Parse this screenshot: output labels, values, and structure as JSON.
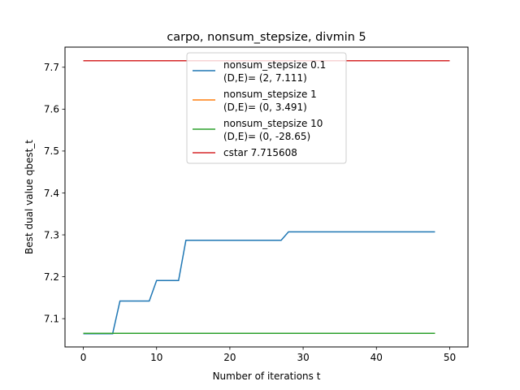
{
  "chart_data": {
    "type": "line",
    "title": "carpo, nonsum_stepsize, divmin 5",
    "xlabel": "Number of iterations t",
    "ylabel": "Best dual value qbest_t",
    "xlim": [
      -2.5,
      52.5
    ],
    "ylim": [
      7.0325,
      7.748
    ],
    "xticks": [
      0,
      10,
      20,
      30,
      40,
      50
    ],
    "yticks": [
      7.1,
      7.2,
      7.3,
      7.4,
      7.5,
      7.6,
      7.7
    ],
    "grid": false,
    "legend_position": "top-center",
    "series": [
      {
        "name": "nonsum_stepsize 0.1",
        "name_line2": "(D,E)= (2, 7.111)",
        "color": "#1f77b4",
        "x": [
          0,
          4,
          5,
          9,
          10,
          13,
          14,
          27,
          28,
          48
        ],
        "y": [
          7.064,
          7.064,
          7.142,
          7.142,
          7.191,
          7.191,
          7.287,
          7.287,
          7.307,
          7.307
        ]
      },
      {
        "name": "nonsum_stepsize 1",
        "name_line2": "(D,E)= (0, 3.491)",
        "color": "#ff7f0e",
        "x": [
          0,
          48
        ],
        "y": [
          7.065,
          7.065
        ]
      },
      {
        "name": "nonsum_stepsize 10",
        "name_line2": "(D,E)= (0, -28.65)",
        "color": "#2ca02c",
        "x": [
          0,
          48
        ],
        "y": [
          7.065,
          7.065
        ]
      },
      {
        "name": "cstar 7.715608",
        "name_line2": "",
        "color": "#d62728",
        "x": [
          0,
          50
        ],
        "y": [
          7.715608,
          7.715608
        ]
      }
    ]
  }
}
